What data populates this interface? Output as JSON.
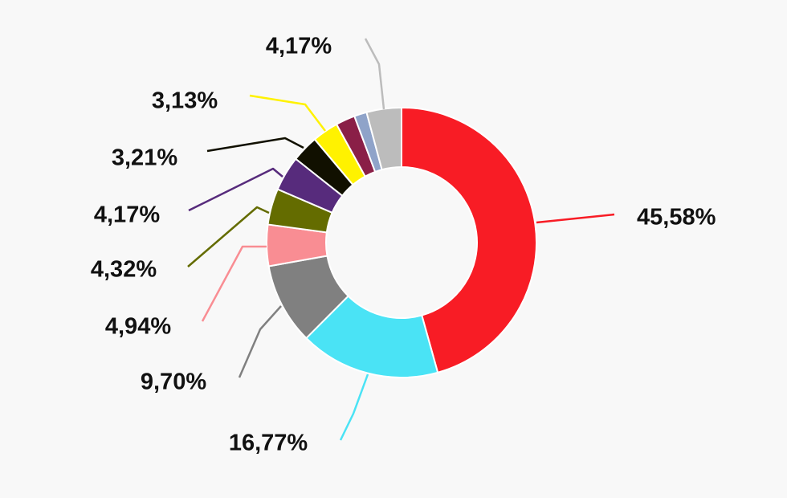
{
  "chart_data": {
    "type": "donut",
    "title": "",
    "legend": "none",
    "slices": [
      {
        "value": 45.58,
        "label": "45,58%",
        "color": "#f81c25"
      },
      {
        "value": 16.77,
        "label": "16,77%",
        "color": "#4ae3f5"
      },
      {
        "value": 9.7,
        "label": "9,70%",
        "color": "#808080"
      },
      {
        "value": 4.94,
        "label": "4,94%",
        "color": "#f98d93"
      },
      {
        "value": 4.32,
        "label": "4,32%",
        "color": "#646c00"
      },
      {
        "value": 4.17,
        "label": "4,17%",
        "color": "#572b7c"
      },
      {
        "value": 3.21,
        "label": "3,21%",
        "color": "#111000"
      },
      {
        "value": 3.13,
        "label": "3,13%",
        "color": "#fff200"
      },
      {
        "value": 2.31,
        "label": "",
        "color": "#8a1f47"
      },
      {
        "value": 1.5,
        "label": "",
        "color": "#8fa3c9"
      },
      {
        "value": 4.17,
        "label": "4,17%",
        "color": "#bcbcbc"
      }
    ]
  }
}
